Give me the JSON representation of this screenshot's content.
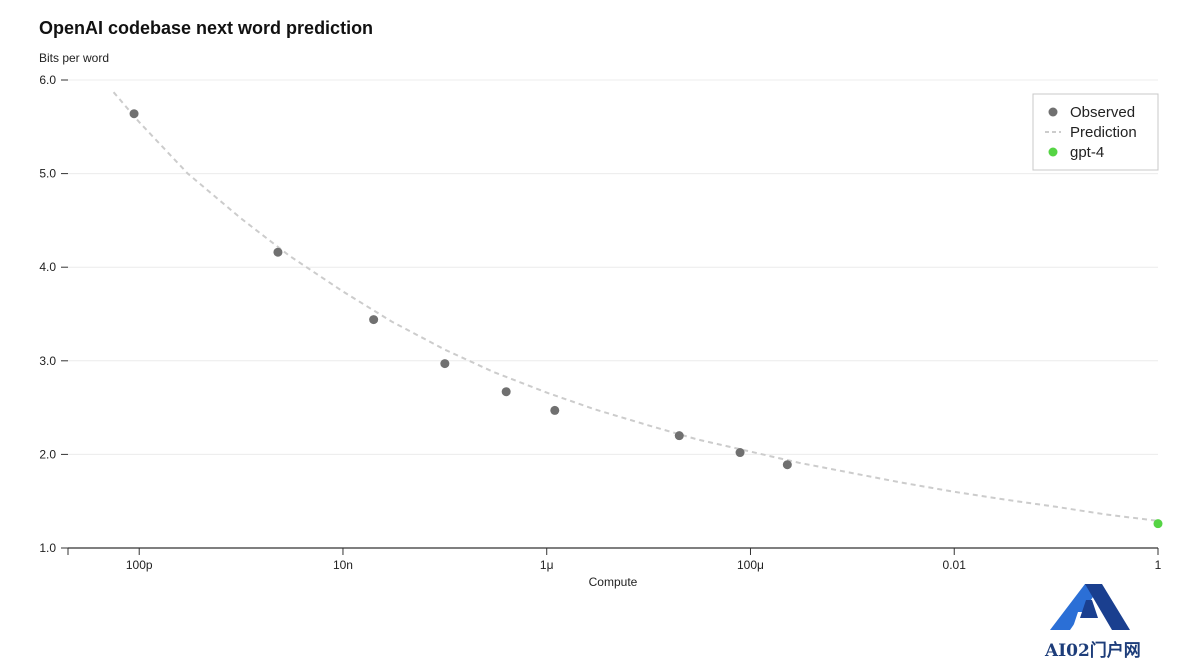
{
  "chart_data": {
    "type": "scatter",
    "title": "OpenAI codebase next word prediction",
    "ylabel": "Bits per word",
    "xlabel": "Compute",
    "x_scale": "log",
    "xlim": [
      2e-11,
      1
    ],
    "ylim": [
      1.0,
      6.0
    ],
    "y_ticks": [
      "1.0",
      "2.0",
      "3.0",
      "4.0",
      "5.0",
      "6.0"
    ],
    "x_ticks": [
      {
        "value": 1e-10,
        "label": "100p"
      },
      {
        "value": 1e-08,
        "label": "10n"
      },
      {
        "value": 1e-06,
        "label": "1μ"
      },
      {
        "value": 0.0001,
        "label": "100μ"
      },
      {
        "value": 0.01,
        "label": "0.01"
      },
      {
        "value": 1,
        "label": "1"
      }
    ],
    "grid": "horizontal",
    "legend_position": "top-right",
    "series": [
      {
        "name": "Observed",
        "kind": "points",
        "color": "#707070",
        "x": [
          8.9e-11,
          2.3e-09,
          2e-08,
          1e-07,
          4e-07,
          1.2e-06,
          2e-05,
          7.9e-05,
          0.00023
        ],
        "y": [
          5.64,
          4.16,
          3.44,
          2.97,
          2.67,
          2.47,
          2.2,
          2.02,
          1.89
        ]
      },
      {
        "name": "Prediction",
        "kind": "dashed-line",
        "color": "#cccccc",
        "x": [
          5.6e-11,
          1e-10,
          3e-10,
          1e-09,
          3e-09,
          1e-08,
          3e-08,
          1e-07,
          3e-07,
          1e-06,
          3e-06,
          1e-05,
          3e-05,
          0.0001,
          0.0003,
          0.001,
          0.003,
          0.01,
          0.03,
          0.1,
          0.3,
          1
        ],
        "y": [
          5.87,
          5.55,
          5.0,
          4.52,
          4.12,
          3.74,
          3.42,
          3.12,
          2.88,
          2.66,
          2.48,
          2.31,
          2.16,
          2.03,
          1.91,
          1.8,
          1.7,
          1.6,
          1.52,
          1.44,
          1.36,
          1.29
        ]
      },
      {
        "name": "gpt-4",
        "kind": "points",
        "color": "#55d444",
        "x": [
          1
        ],
        "y": [
          1.26
        ]
      }
    ]
  },
  "watermark": {
    "text": "AI02门户网",
    "icon": "triangle-logo-icon",
    "color": "#1d4ea0"
  }
}
